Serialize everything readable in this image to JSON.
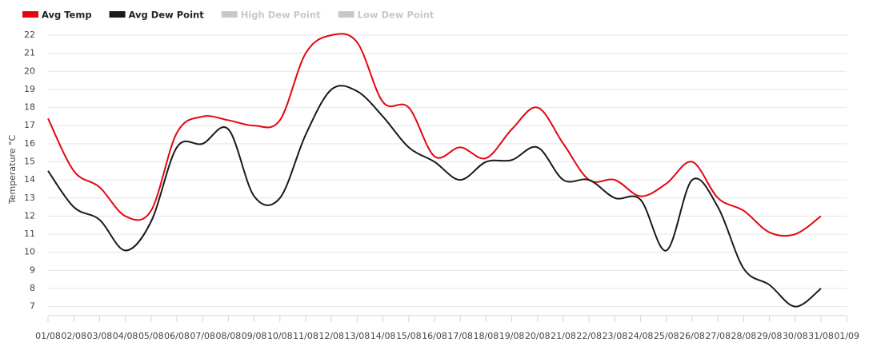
{
  "chart_data": {
    "type": "line",
    "y_label": "Temperature °C",
    "x": [
      "01/08",
      "02/08",
      "03/08",
      "04/08",
      "05/08",
      "06/08",
      "07/08",
      "08/08",
      "09/08",
      "10/08",
      "11/08",
      "12/08",
      "13/08",
      "14/08",
      "15/08",
      "16/08",
      "17/08",
      "18/08",
      "19/08",
      "20/08",
      "21/08",
      "22/08",
      "23/08",
      "24/08",
      "25/08",
      "26/08",
      "27/08",
      "28/08",
      "29/08",
      "30/08",
      "31/08",
      "01/09"
    ],
    "series": [
      {
        "name": "Avg Temp",
        "color": "#e30613",
        "visible": true,
        "values": [
          17.4,
          14.5,
          13.6,
          12,
          12.3,
          16.6,
          17.5,
          17.3,
          17,
          17.3,
          21,
          22,
          21.6,
          18.3,
          18,
          15.3,
          15.8,
          15.2,
          16.8,
          18,
          16,
          14,
          14,
          13.1,
          13.8,
          15,
          13,
          12.3,
          11.1,
          11,
          12,
          null
        ]
      },
      {
        "name": "Avg Dew Point",
        "color": "#1a1a1a",
        "visible": true,
        "values": [
          14.5,
          12.5,
          11.8,
          10.1,
          11.7,
          15.8,
          16,
          16.8,
          13.1,
          13,
          16.5,
          19,
          18.9,
          17.5,
          15.8,
          15,
          14,
          15,
          15.1,
          15.8,
          14,
          14,
          13,
          12.9,
          10.1,
          14,
          12.5,
          9.1,
          8.2,
          7,
          8,
          null
        ]
      },
      {
        "name": "High Dew Point",
        "color": "#c8c8c8",
        "visible": false,
        "values": [
          null,
          null,
          null,
          null,
          null,
          null,
          null,
          null,
          null,
          null,
          null,
          null,
          null,
          null,
          null,
          null,
          null,
          null,
          null,
          null,
          null,
          null,
          null,
          null,
          null,
          null,
          null,
          null,
          null,
          null,
          null,
          null
        ]
      },
      {
        "name": "Low Dew Point",
        "color": "#c8c8c8",
        "visible": false,
        "values": [
          null,
          null,
          null,
          null,
          null,
          null,
          null,
          null,
          null,
          null,
          null,
          null,
          null,
          null,
          null,
          null,
          null,
          null,
          null,
          null,
          null,
          null,
          null,
          null,
          null,
          null,
          null,
          null,
          null,
          null,
          null,
          null
        ]
      }
    ],
    "ylim": [
      6.5,
      22
    ],
    "yticks": [
      7,
      8,
      9,
      10,
      11,
      12,
      13,
      14,
      15,
      16,
      17,
      18,
      19,
      20,
      21,
      22
    ],
    "grid": true
  }
}
